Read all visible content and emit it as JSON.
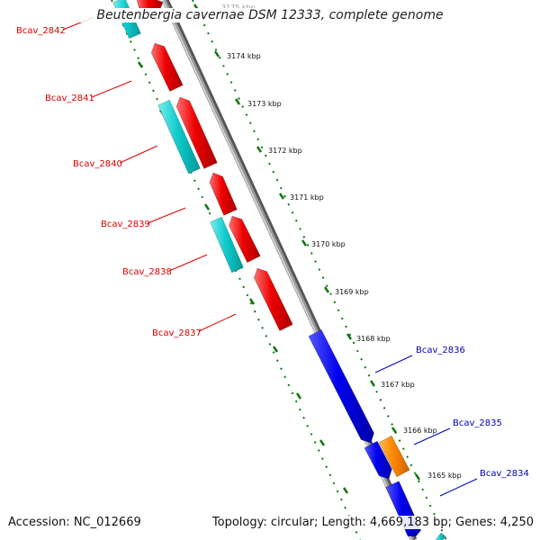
{
  "title": "Beutenbergia cavernae DSM 12333, complete genome",
  "accession": "Accession: NC_012669",
  "summary": "Topology: circular; Length: 4,669,183 bp; Genes: 4,250",
  "kbp_labels": [
    "3175 kbp",
    "3174 kbp",
    "3173 kbp",
    "3172 kbp",
    "3171 kbp",
    "3170 kbp",
    "3169 kbp",
    "3168 kbp",
    "3167 kbp",
    "3166 kbp",
    "3165 kbp"
  ],
  "gene_labels": [
    {
      "text": "Bcav_2842",
      "strand": "minus"
    },
    {
      "text": "Bcav_2841",
      "strand": "minus"
    },
    {
      "text": "Bcav_2840",
      "strand": "minus"
    },
    {
      "text": "Bcav_2839",
      "strand": "minus"
    },
    {
      "text": "Bcav_2838",
      "strand": "minus"
    },
    {
      "text": "Bcav_2837",
      "strand": "minus"
    },
    {
      "text": "Bcav_2836",
      "strand": "plus"
    },
    {
      "text": "Bcav_2835",
      "strand": "plus"
    },
    {
      "text": "Bcav_2834",
      "strand": "plus"
    }
  ],
  "colors": {
    "minus_gene": "#ee0000",
    "plus_gene": "#0000ee",
    "cds_cyan": "#11cccc",
    "orange_feature": "#ff8800",
    "backbone": "#888888",
    "ticks": "#117711",
    "minus_label": "#dd0000",
    "plus_label": "#0000bb"
  }
}
